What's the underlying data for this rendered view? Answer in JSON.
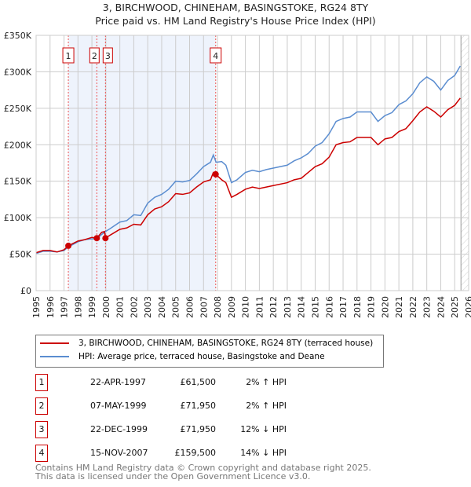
{
  "chart_data": {
    "type": "line",
    "title": "3, BIRCHWOOD, CHINEHAM, BASINGSTOKE, RG24 8TY",
    "subtitle": "Price paid vs. HM Land Registry's House Price Index (HPI)",
    "xlim": [
      1995,
      2026
    ],
    "ylim": [
      0,
      350000
    ],
    "y_ticks": [
      0,
      50000,
      100000,
      150000,
      200000,
      250000,
      300000,
      350000
    ],
    "y_tick_labels": [
      "£0",
      "£50K",
      "£100K",
      "£150K",
      "£200K",
      "£250K",
      "£300K",
      "£350K"
    ],
    "x_ticks": [
      "1995",
      "1996",
      "1997",
      "1998",
      "1999",
      "2000",
      "2001",
      "2002",
      "2003",
      "2004",
      "2005",
      "2006",
      "2007",
      "2008",
      "2009",
      "2010",
      "2011",
      "2012",
      "2013",
      "2014",
      "2015",
      "2016",
      "2017",
      "2018",
      "2019",
      "2020",
      "2021",
      "2022",
      "2023",
      "2024",
      "2025",
      "2026"
    ],
    "grid": true,
    "shaded_range": [
      1997.31,
      2007.87
    ],
    "hatched_from": 2025.45,
    "series": [
      {
        "name": "3, BIRCHWOOD, CHINEHAM, BASINGSTOKE, RG24 8TY (terraced house)",
        "color": "#cc0000",
        "x": [
          1995,
          1995.5,
          1996,
          1996.5,
          1997,
          1997.31,
          1998,
          1998.5,
          1999,
          1999.35,
          1999.7,
          1999.9,
          1999.97,
          2000.3,
          2001,
          2001.5,
          2002,
          2002.5,
          2003,
          2003.5,
          2004,
          2004.5,
          2005,
          2005.5,
          2006,
          2006.5,
          2007,
          2007.5,
          2007.7,
          2007.87,
          2008.3,
          2008.6,
          2009,
          2009.4,
          2010,
          2010.5,
          2011,
          2011.5,
          2012,
          2013,
          2013.5,
          2014,
          2014.5,
          2015,
          2015.5,
          2016,
          2016.5,
          2017,
          2017.5,
          2018,
          2019,
          2019.5,
          2020,
          2020.5,
          2021,
          2021.5,
          2022,
          2022.5,
          2023,
          2023.5,
          2024,
          2024.5,
          2025,
          2025.4
        ],
        "y": [
          52000,
          55000,
          55000,
          53000,
          56000,
          61500,
          68000,
          70000,
          73000,
          71950,
          80000,
          81000,
          71950,
          76000,
          84000,
          86000,
          91000,
          90000,
          104000,
          112000,
          115000,
          122000,
          133000,
          132000,
          134000,
          142000,
          149000,
          152000,
          162000,
          159500,
          152000,
          148000,
          128000,
          132000,
          139000,
          142000,
          140000,
          142000,
          144000,
          148000,
          152000,
          154000,
          162000,
          170000,
          174000,
          183000,
          200000,
          203000,
          204000,
          210000,
          210000,
          200000,
          208000,
          210000,
          218000,
          222000,
          233000,
          245000,
          252000,
          246000,
          238000,
          248000,
          254000,
          264000
        ]
      },
      {
        "name": "HPI: Average price, terraced house, Basingstoke and Deane",
        "color": "#5b8dd0",
        "x": [
          1995,
          1995.5,
          1996,
          1996.5,
          1997,
          1997.31,
          1998,
          1998.5,
          1999,
          1999.35,
          1999.7,
          1999.97,
          2000.3,
          2001,
          2001.5,
          2002,
          2002.5,
          2003,
          2003.5,
          2004,
          2004.5,
          2005,
          2005.5,
          2006,
          2006.5,
          2007,
          2007.5,
          2007.7,
          2007.9,
          2008.3,
          2008.6,
          2009,
          2009.4,
          2010,
          2010.5,
          2011,
          2011.5,
          2012,
          2013,
          2013.5,
          2014,
          2014.5,
          2015,
          2015.5,
          2016,
          2016.5,
          2017,
          2017.5,
          2018,
          2019,
          2019.5,
          2020,
          2020.5,
          2021,
          2021.5,
          2022,
          2022.5,
          2023,
          2023.5,
          2024,
          2024.5,
          2025,
          2025.4
        ],
        "y": [
          51000,
          54000,
          54000,
          53000,
          55000,
          60000,
          67000,
          70000,
          71000,
          71000,
          77000,
          81000,
          85000,
          94000,
          96000,
          104000,
          103000,
          120000,
          128000,
          132000,
          139000,
          150000,
          149000,
          151000,
          160000,
          170000,
          176000,
          186000,
          176000,
          177000,
          172000,
          148000,
          152000,
          162000,
          165000,
          163000,
          166000,
          168000,
          172000,
          178000,
          182000,
          188000,
          198000,
          203000,
          215000,
          232000,
          236000,
          238000,
          245000,
          245000,
          232000,
          240000,
          244000,
          255000,
          260000,
          270000,
          285000,
          293000,
          287000,
          275000,
          288000,
          295000,
          308000
        ]
      }
    ],
    "sales": [
      {
        "label": "1",
        "x": 1997.31,
        "y": 61500
      },
      {
        "label": "2",
        "x": 1999.35,
        "y": 71950
      },
      {
        "label": "3",
        "x": 1999.97,
        "y": 71950
      },
      {
        "label": "4",
        "x": 2007.87,
        "y": 159500
      }
    ]
  },
  "legend": {
    "red": "3, BIRCHWOOD, CHINEHAM, BASINGSTOKE, RG24 8TY (terraced house)",
    "blue": "HPI: Average price, terraced house, Basingstoke and Deane"
  },
  "table": [
    {
      "num": "1",
      "date": "22-APR-1997",
      "price": "£61,500",
      "hpi": "2% ↑ HPI"
    },
    {
      "num": "2",
      "date": "07-MAY-1999",
      "price": "£71,950",
      "hpi": "2% ↑ HPI"
    },
    {
      "num": "3",
      "date": "22-DEC-1999",
      "price": "£71,950",
      "hpi": "12% ↓ HPI"
    },
    {
      "num": "4",
      "date": "15-NOV-2007",
      "price": "£159,500",
      "hpi": "14% ↓ HPI"
    }
  ],
  "footer": {
    "line1": "Contains HM Land Registry data © Crown copyright and database right 2025.",
    "line2": "This data is licensed under the Open Government Licence v3.0."
  }
}
